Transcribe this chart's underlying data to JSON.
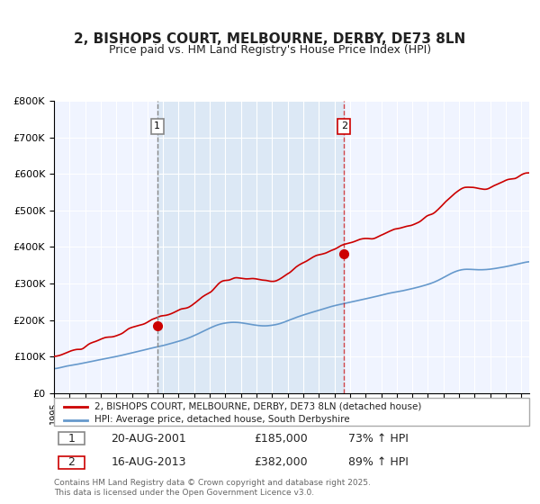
{
  "title": "2, BISHOPS COURT, MELBOURNE, DERBY, DE73 8LN",
  "subtitle": "Price paid vs. HM Land Registry's House Price Index (HPI)",
  "title_fontsize": 11,
  "subtitle_fontsize": 9,
  "background_color": "#ffffff",
  "plot_bg_color": "#f0f4ff",
  "grid_color": "#ffffff",
  "ylabel": "",
  "xlabel": "",
  "ylim": [
    0,
    800000
  ],
  "yticks": [
    0,
    100000,
    200000,
    300000,
    400000,
    500000,
    600000,
    700000,
    800000
  ],
  "ytick_labels": [
    "£0",
    "£100K",
    "£200K",
    "£300K",
    "£400K",
    "£500K",
    "£600K",
    "£700K",
    "£800K"
  ],
  "red_line_color": "#cc0000",
  "blue_line_color": "#6699cc",
  "sale1_date": 2001.63,
  "sale1_price": 185000,
  "sale1_label": "1",
  "sale2_date": 2013.62,
  "sale2_price": 382000,
  "sale2_label": "2",
  "shaded_region_start": 2001.63,
  "shaded_region_end": 2013.62,
  "shaded_region_color": "#dce8f5",
  "legend_red_label": "2, BISHOPS COURT, MELBOURNE, DERBY, DE73 8LN (detached house)",
  "legend_blue_label": "HPI: Average price, detached house, South Derbyshire",
  "annotation1_date": "20-AUG-2001",
  "annotation1_price": "£185,000",
  "annotation1_hpi": "73% ↑ HPI",
  "annotation2_date": "16-AUG-2013",
  "annotation2_price": "£382,000",
  "annotation2_hpi": "89% ↑ HPI",
  "footer": "Contains HM Land Registry data © Crown copyright and database right 2025.\nThis data is licensed under the Open Government Licence v3.0.",
  "xmin": 1995,
  "xmax": 2025.5
}
